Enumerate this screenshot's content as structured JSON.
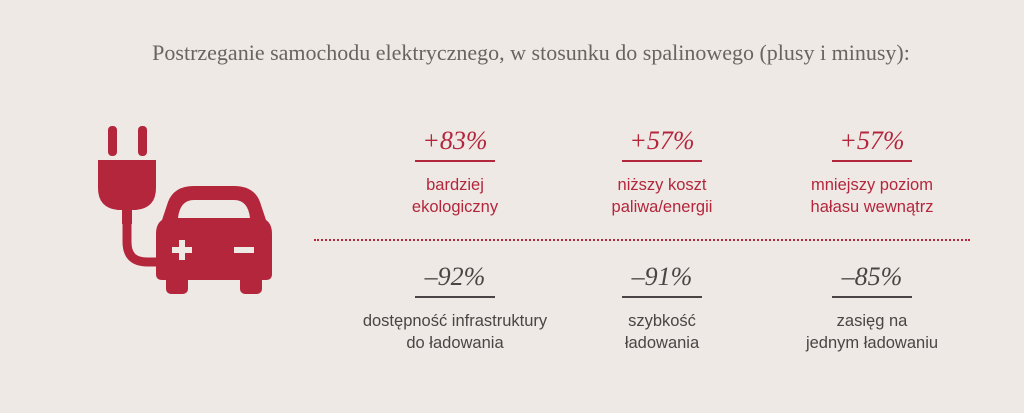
{
  "title": "Postrzeganie samochodu elektrycznego, w stosunku do spalinowego (plusy i minusy):",
  "icon": {
    "name": "electric-car-plug-icon",
    "color": "#b3263c"
  },
  "plus": [
    {
      "value": "+83%",
      "line1": "bardziej",
      "line2": "ekologiczny"
    },
    {
      "value": "+57%",
      "line1": "niższy koszt",
      "line2": "paliwa/energii"
    },
    {
      "value": "+57%",
      "line1": "mniejszy poziom",
      "line2": "hałasu wewnątrz"
    }
  ],
  "minus": [
    {
      "value": "–92%",
      "line1": "dostępność infrastruktury",
      "line2": "do ładowania"
    },
    {
      "value": "–91%",
      "line1": "szybkość",
      "line2": "ładowania"
    },
    {
      "value": "–85%",
      "line1": "zasięg na",
      "line2": "jednym ładowaniu"
    }
  ],
  "colors": {
    "accent": "#b3263c",
    "dark": "#4a4544",
    "background": "#efe9e5"
  }
}
